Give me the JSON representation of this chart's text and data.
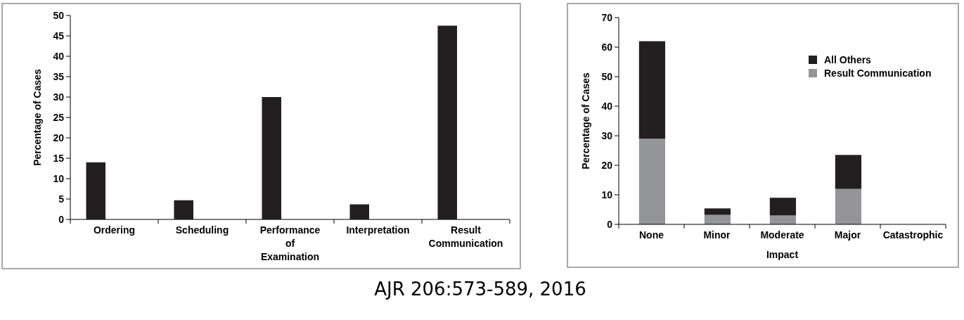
{
  "chart_data": [
    {
      "type": "bar",
      "ylabel": "Percentage of Cases",
      "categories": [
        "Ordering",
        "Scheduling",
        "Performance of Examination",
        "Interpretation",
        "Result Communication"
      ],
      "values": [
        14,
        4.7,
        30,
        3.7,
        47.5
      ],
      "color": "#231f20",
      "ylim": [
        0,
        50
      ],
      "yticks": [
        0,
        5,
        10,
        15,
        20,
        25,
        30,
        35,
        40,
        45,
        50
      ],
      "annotations": [
        "AJR 206:573-589, 2016"
      ]
    },
    {
      "type": "bar",
      "stacked": true,
      "xlabel": "Impact",
      "ylabel": "Percentage of Cases",
      "categories": [
        "None",
        "Minor",
        "Moderate",
        "Major",
        "Catastrophic"
      ],
      "series": [
        {
          "name": "Result Communication",
          "color": "#939598",
          "values": [
            29,
            3.2,
            3,
            12,
            0
          ]
        },
        {
          "name": "All Others",
          "color": "#231f20",
          "values": [
            33,
            2.2,
            6,
            11.5,
            0
          ]
        }
      ],
      "ylim": [
        0,
        70
      ],
      "yticks": [
        0,
        10,
        20,
        30,
        40,
        50,
        60,
        70
      ],
      "legend": "top right"
    }
  ]
}
